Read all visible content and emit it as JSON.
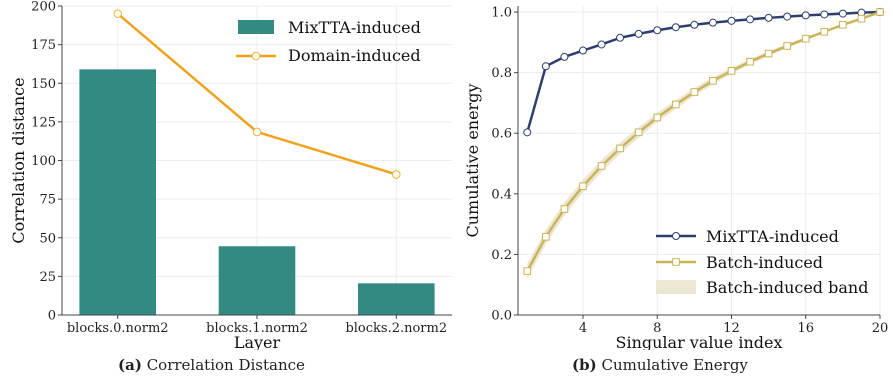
{
  "chart_data": [
    {
      "type": "bar",
      "categories": [
        "blocks.0.norm2",
        "blocks.1.norm2",
        "blocks.2.norm2"
      ],
      "series": [
        {
          "name": "MixTTA-induced",
          "kind": "bar",
          "values": [
            159,
            44.5,
            20.5
          ],
          "color": "#328a83"
        },
        {
          "name": "Domain-induced",
          "kind": "line",
          "values": [
            195,
            118.5,
            91
          ],
          "color": "#f0a21e"
        }
      ],
      "xlabel": "Layer",
      "ylabel": "Correlation distance",
      "ylim": [
        0,
        200
      ],
      "yticks": [
        0,
        25,
        50,
        75,
        100,
        125,
        150,
        175,
        200
      ],
      "grid": true,
      "legend": "top-right"
    },
    {
      "type": "line",
      "x": [
        1,
        2,
        3,
        4,
        5,
        6,
        7,
        8,
        9,
        10,
        11,
        12,
        13,
        14,
        15,
        16,
        17,
        18,
        19,
        20
      ],
      "series": [
        {
          "name": "MixTTA-induced",
          "values": [
            0.603,
            0.821,
            0.852,
            0.873,
            0.893,
            0.915,
            0.928,
            0.94,
            0.95,
            0.958,
            0.965,
            0.971,
            0.976,
            0.981,
            0.985,
            0.989,
            0.992,
            0.995,
            0.998,
            1.0
          ],
          "color": "#2e3f6e",
          "marker": "circle"
        },
        {
          "name": "Batch-induced",
          "values": [
            0.145,
            0.258,
            0.35,
            0.425,
            0.492,
            0.55,
            0.603,
            0.652,
            0.695,
            0.736,
            0.773,
            0.806,
            0.836,
            0.863,
            0.888,
            0.912,
            0.935,
            0.958,
            0.978,
            1.0
          ],
          "color": "#c9b45a",
          "marker": "square"
        }
      ],
      "band": {
        "name": "Batch-induced band",
        "width": 0.025,
        "color": "#ece7d2"
      },
      "xlabel": "Singular value index",
      "ylabel": "Cumulative energy",
      "xlim": [
        0.5,
        20
      ],
      "ylim": [
        0,
        1.02
      ],
      "xticks": [
        4,
        8,
        12,
        16,
        20
      ],
      "yticks": [
        0.0,
        0.2,
        0.4,
        0.6,
        0.8,
        1.0
      ],
      "ytick_labels": [
        "0.0",
        "0.2",
        "0.4",
        "0.6",
        "0.8",
        "1.0"
      ],
      "grid": true,
      "legend": "bottom-right"
    }
  ],
  "captions": [
    {
      "tag": "(a)",
      "text": "Correlation Distance"
    },
    {
      "tag": "(b)",
      "text": "Cumulative Energy"
    }
  ]
}
